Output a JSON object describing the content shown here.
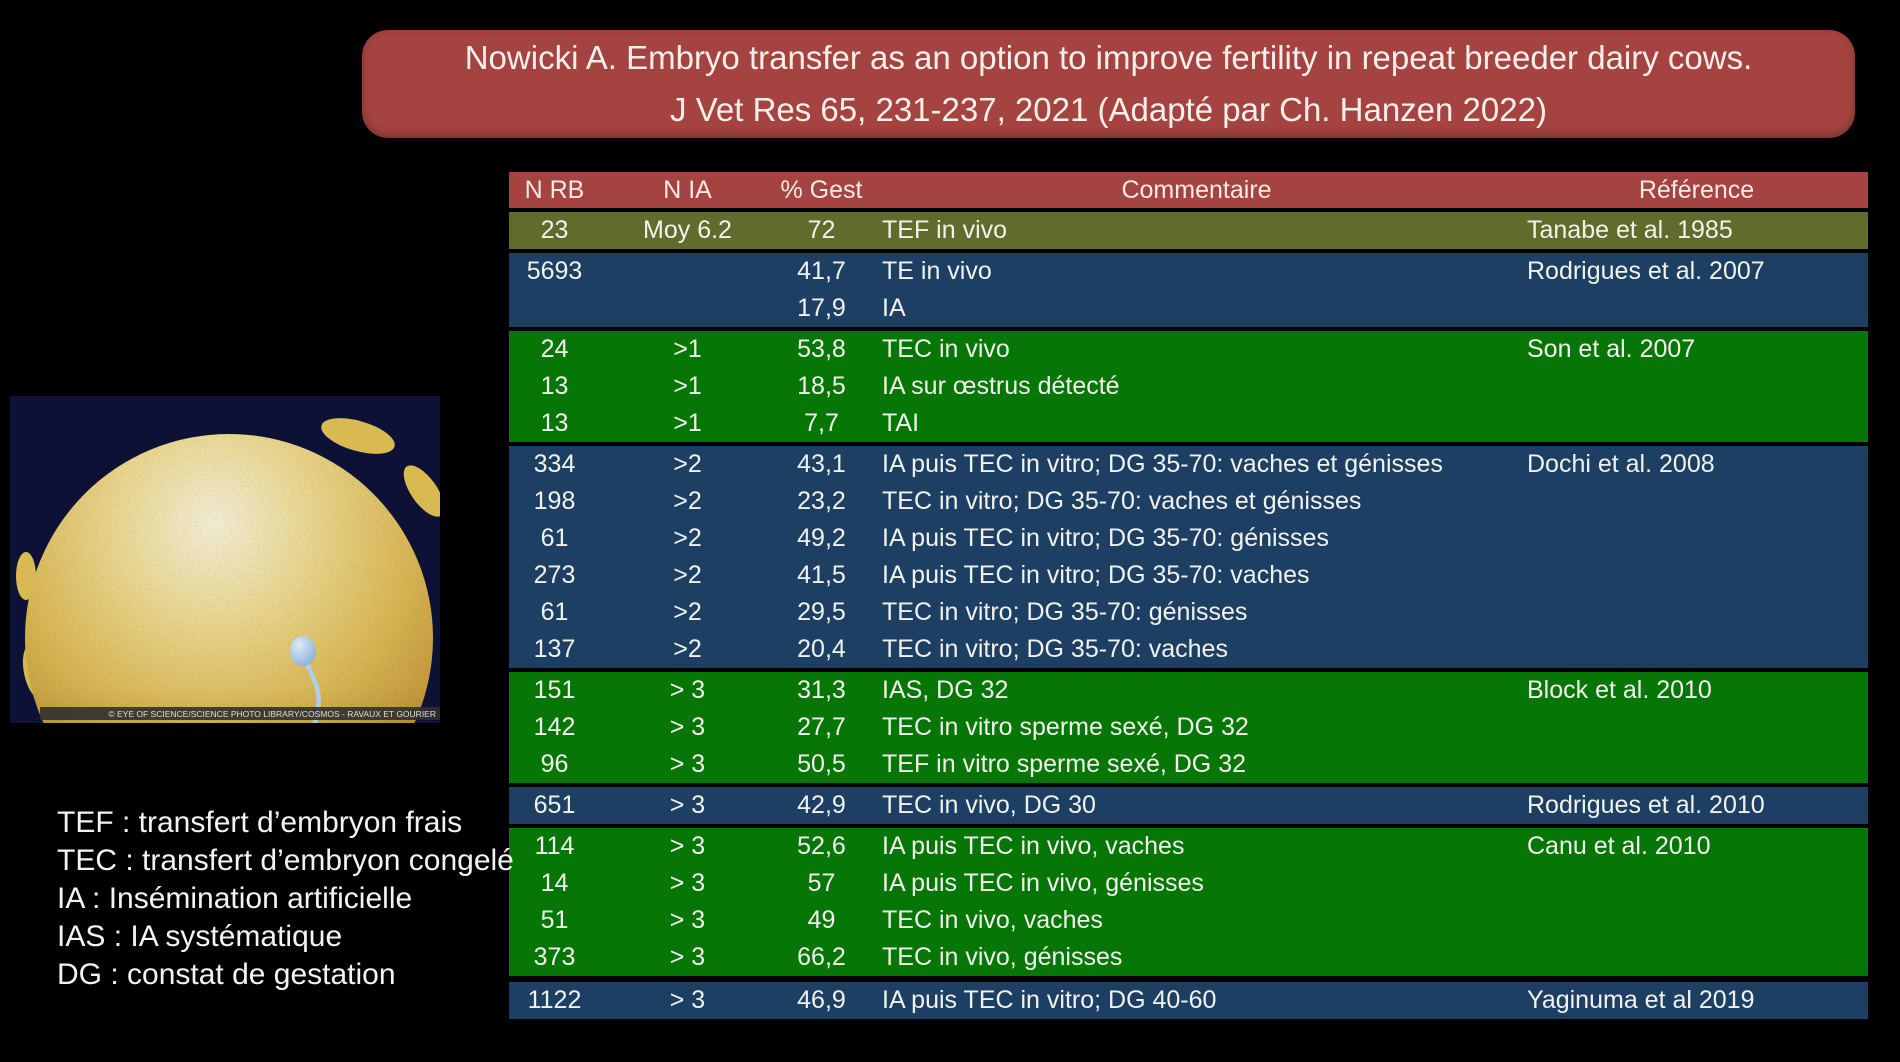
{
  "title": {
    "line1": "Nowicki A. Embryo transfer as an option to improve fertility in repeat breeder dairy cows.",
    "line2": "J Vet Res 65, 231-237, 2021 (Adapté par Ch. Hanzen 2022)"
  },
  "table": {
    "headers": [
      "N RB",
      "N IA",
      "% Gest",
      "Commentaire",
      "Référence"
    ],
    "rows": [
      {
        "n_rb": "23",
        "n_ia": "Moy 6.2",
        "gest": "72",
        "comment": "TEF in vivo",
        "ref": "Tanabe et al. 1985",
        "color": "olive"
      },
      {
        "n_rb": "5693",
        "n_ia": "",
        "gest": "41,7",
        "comment": "TE in vivo",
        "ref": "Rodrigues et al. 2007",
        "color": "blue"
      },
      {
        "n_rb": "",
        "n_ia": "",
        "gest": "17,9",
        "comment": "IA",
        "ref": "",
        "color": "blue"
      },
      {
        "n_rb": "24",
        "n_ia": ">1",
        "gest": "53,8",
        "comment": "TEC in vivo",
        "ref": "Son et al. 2007",
        "color": "green"
      },
      {
        "n_rb": "13",
        "n_ia": ">1",
        "gest": "18,5",
        "comment": "IA sur œstrus détecté",
        "ref": "",
        "color": "green"
      },
      {
        "n_rb": "13",
        "n_ia": ">1",
        "gest": "7,7",
        "comment": "TAI",
        "ref": "",
        "color": "green"
      },
      {
        "n_rb": "334",
        "n_ia": ">2",
        "gest": "43,1",
        "comment": "IA puis TEC in vitro; DG 35-70: vaches et génisses",
        "ref": "Dochi et al. 2008",
        "color": "blue"
      },
      {
        "n_rb": "198",
        "n_ia": ">2",
        "gest": "23,2",
        "comment": "TEC in vitro; DG 35-70: vaches et génisses",
        "ref": "",
        "color": "blue"
      },
      {
        "n_rb": "61",
        "n_ia": ">2",
        "gest": "49,2",
        "comment": "IA puis TEC in vitro; DG 35-70: génisses",
        "ref": "",
        "color": "blue"
      },
      {
        "n_rb": "273",
        "n_ia": ">2",
        "gest": "41,5",
        "comment": "IA puis TEC in vitro; DG 35-70: vaches",
        "ref": "",
        "color": "blue"
      },
      {
        "n_rb": "61",
        "n_ia": ">2",
        "gest": "29,5",
        "comment": "TEC in vitro; DG 35-70: génisses",
        "ref": "",
        "color": "blue"
      },
      {
        "n_rb": "137",
        "n_ia": ">2",
        "gest": "20,4",
        "comment": "TEC in vitro; DG 35-70: vaches",
        "ref": "",
        "color": "blue"
      },
      {
        "n_rb": "151",
        "n_ia": "> 3",
        "gest": "31,3",
        "comment": "IAS, DG 32",
        "ref": "Block et al. 2010",
        "color": "green"
      },
      {
        "n_rb": "142",
        "n_ia": "> 3",
        "gest": "27,7",
        "comment": "TEC in vitro sperme sexé, DG 32",
        "ref": "",
        "color": "green"
      },
      {
        "n_rb": "96",
        "n_ia": "> 3",
        "gest": "50,5",
        "comment": "TEF in vitro sperme sexé, DG 32",
        "ref": "",
        "color": "green"
      },
      {
        "n_rb": "651",
        "n_ia": "> 3",
        "gest": "42,9",
        "comment": "TEC in vivo, DG 30",
        "ref": "Rodrigues et al. 2010",
        "color": "blue"
      },
      {
        "n_rb": "114",
        "n_ia": "> 3",
        "gest": "52,6",
        "comment": "IA puis TEC in vivo, vaches",
        "ref": "Canu et al. 2010",
        "color": "green"
      },
      {
        "n_rb": "14",
        "n_ia": "> 3",
        "gest": "57",
        "comment": "IA puis TEC in vivo, génisses",
        "ref": "",
        "color": "green"
      },
      {
        "n_rb": "51",
        "n_ia": "> 3",
        "gest": "49",
        "comment": "TEC in vivo, vaches",
        "ref": "",
        "color": "green"
      },
      {
        "n_rb": "373",
        "n_ia": "> 3",
        "gest": "66,2",
        "comment": "TEC in vivo, génisses",
        "ref": "",
        "color": "green"
      },
      {
        "n_rb": "1122",
        "n_ia": "> 3",
        "gest": "46,9",
        "comment": "IA puis TEC in vitro; DG 40-60",
        "ref": "Yaginuma et al 2019",
        "color": "blue"
      }
    ]
  },
  "legend": {
    "items": [
      "TEF : transfert d’embryon frais",
      "TEC : transfert d’embryon congelé",
      "IA : Insémination artificielle",
      "IAS : IA systématique",
      "DG : constat de gestation"
    ]
  },
  "photo": {
    "credit": "© EYE OF SCIENCE/SCIENCE PHOTO LIBRARY/COSMOS - RAVAUX ET GOURIER"
  },
  "colors": {
    "background": "#000000",
    "title_box": "#A4433F",
    "header_row": "#A4433F",
    "rows": {
      "olive": "#5F6C2B",
      "blue": "#1E3F64",
      "green": "#067606"
    },
    "row_gap": "#000000"
  }
}
